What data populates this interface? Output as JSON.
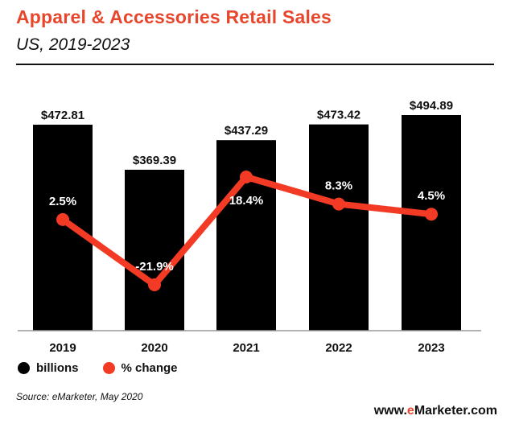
{
  "header": {
    "title": "Apparel & Accessories Retail Sales",
    "subtitle": "US, 2019-2023"
  },
  "legend": {
    "billions_label": "billions",
    "change_label": "% change"
  },
  "footer": {
    "source": "Source: eMarketer, May 2020",
    "brand_prefix": "www.",
    "brand_accent": "e",
    "brand_suffix": "Marketer.com"
  },
  "colors": {
    "bar": "#000000",
    "line": "#f23a24",
    "title": "#e8462c"
  },
  "chart_data": {
    "type": "bar",
    "title": "Apparel & Accessories Retail Sales",
    "subtitle": "US, 2019-2023",
    "categories": [
      "2019",
      "2020",
      "2021",
      "2022",
      "2023"
    ],
    "series": [
      {
        "name": "billions",
        "type": "bar",
        "values": [
          472.81,
          369.39,
          437.29,
          473.42,
          494.89
        ],
        "labels": [
          "$472.81",
          "$369.39",
          "$437.29",
          "$473.42",
          "$494.89"
        ]
      },
      {
        "name": "% change",
        "type": "line",
        "values": [
          2.5,
          -21.9,
          18.4,
          8.3,
          4.5
        ],
        "labels": [
          "2.5%",
          "-21.9%",
          "18.4%",
          "8.3%",
          "4.5%"
        ]
      }
    ],
    "legend_position": "bottom-left",
    "grid": false
  }
}
